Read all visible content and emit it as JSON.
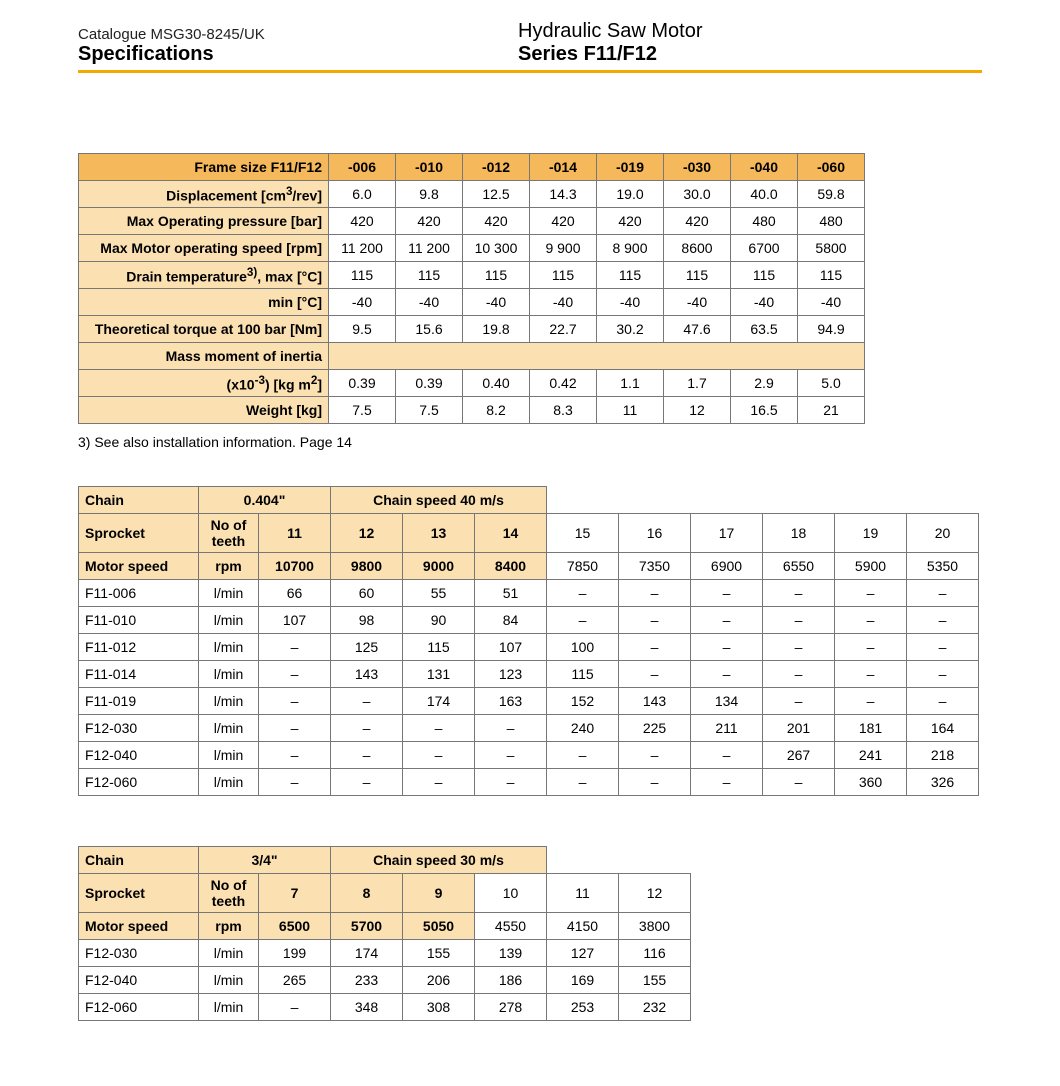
{
  "colors": {
    "accent_rule": "#f6a800",
    "header_bg": "#f5b85a",
    "header_light_bg": "#fbe0b2",
    "border": "#777777",
    "text": "#000000"
  },
  "header": {
    "catalogue": "Catalogue MSG30-8245/UK",
    "specifications": "Specifications",
    "product": "Hydraulic Saw Motor",
    "series": "Series F11/F12"
  },
  "table1": {
    "title": "Frame size F11/F12",
    "cols": [
      "-006",
      "-010",
      "-012",
      "-014",
      "-019",
      "-030",
      "-040",
      "-060"
    ],
    "rows": [
      {
        "label_html": "<b>Displacement</b> [cm<sup>3</sup>/rev]",
        "vals": [
          "6.0",
          "9.8",
          "12.5",
          "14.3",
          "19.0",
          "30.0",
          "40.0",
          "59.8"
        ]
      },
      {
        "label_html": "<b>Max Operating pressure</b> [bar]",
        "vals": [
          "420",
          "420",
          "420",
          "420",
          "420",
          "420",
          "480",
          "480"
        ]
      },
      {
        "label_html": "<b>Max Motor operating speed</b> [rpm]",
        "vals": [
          "11 200",
          "11 200",
          "10 300",
          "9 900",
          "8 900",
          "8600",
          "6700",
          "5800"
        ]
      },
      {
        "label_html": "<b>Drain temperature</b><sup>3)</sup>, <b>max</b> [°C]",
        "vals": [
          "115",
          "115",
          "115",
          "115",
          "115",
          "115",
          "115",
          "115"
        ]
      },
      {
        "label_html": "<b>min</b> [°C]",
        "vals": [
          "-40",
          "-40",
          "-40",
          "-40",
          "-40",
          "-40",
          "-40",
          "-40"
        ]
      },
      {
        "label_html": "<b>Theoretical torque at 100 bar</b> [Nm]",
        "vals": [
          "9.5",
          "15.6",
          "19.8",
          "22.7",
          "30.2",
          "47.6",
          "63.5",
          "94.9"
        ]
      },
      {
        "label_html": "<b>Mass moment of inertia</b>",
        "span": true
      },
      {
        "label_html": "(x10<sup>-3</sup>) [kg m<sup>2</sup>]",
        "vals": [
          "0.39",
          "0.39",
          "0.40",
          "0.42",
          "1.1",
          "1.7",
          "2.9",
          "5.0"
        ]
      },
      {
        "label_html": "<b>Weight</b> [kg]",
        "vals": [
          "7.5",
          "7.5",
          "8.2",
          "8.3",
          "11",
          "12",
          "16.5",
          "21"
        ]
      }
    ],
    "col_widths": {
      "label": 250,
      "data": 67
    },
    "footnote": "3) See also installation information. Page 14"
  },
  "table2": {
    "chain_label": "Chain",
    "chain_val": "0.404\"",
    "chain_speed": "Chain speed 40 m/s",
    "sprocket_label": "Sprocket",
    "noteeth": "No of teeth",
    "teeth": [
      "11",
      "12",
      "13",
      "14",
      "15",
      "16",
      "17",
      "18",
      "19",
      "20"
    ],
    "motor_speed_label": "Motor speed",
    "motor_speed_unit": "rpm",
    "motor_speed_vals": [
      "10700",
      "9800",
      "9000",
      "8400",
      "7850",
      "7350",
      "6900",
      "6550",
      "5900",
      "5350"
    ],
    "rows": [
      {
        "name": "F11-006",
        "unit": "l/min",
        "vals": [
          "66",
          "60",
          "55",
          "51",
          "–",
          "–",
          "–",
          "–",
          "–",
          "–"
        ]
      },
      {
        "name": "F11-010",
        "unit": "l/min",
        "vals": [
          "107",
          "98",
          "90",
          "84",
          "–",
          "–",
          "–",
          "–",
          "–",
          "–"
        ]
      },
      {
        "name": "F11-012",
        "unit": "l/min",
        "vals": [
          "–",
          "125",
          "115",
          "107",
          "100",
          "–",
          "–",
          "–",
          "–",
          "–"
        ]
      },
      {
        "name": "F11-014",
        "unit": "l/min",
        "vals": [
          "–",
          "143",
          "131",
          "123",
          "115",
          "–",
          "–",
          "–",
          "–",
          "–"
        ]
      },
      {
        "name": "F11-019",
        "unit": "l/min",
        "vals": [
          "–",
          "–",
          "174",
          "163",
          "152",
          "143",
          "134",
          "–",
          "–",
          "–"
        ]
      },
      {
        "name": "F12-030",
        "unit": "l/min",
        "vals": [
          "–",
          "–",
          "–",
          "–",
          "240",
          "225",
          "211",
          "201",
          "181",
          "164"
        ]
      },
      {
        "name": "F12-040",
        "unit": "l/min",
        "vals": [
          "–",
          "–",
          "–",
          "–",
          "–",
          "–",
          "–",
          "267",
          "241",
          "218"
        ]
      },
      {
        "name": "F12-060",
        "unit": "l/min",
        "vals": [
          "–",
          "–",
          "–",
          "–",
          "–",
          "–",
          "–",
          "–",
          "360",
          "326"
        ]
      }
    ],
    "col_widths": {
      "c1": 120,
      "c2": 60,
      "data": 72
    }
  },
  "table3": {
    "chain_label": "Chain",
    "chain_val": "3/4\"",
    "chain_speed": "Chain speed 30 m/s",
    "sprocket_label": "Sprocket",
    "noteeth": "No of teeth",
    "teeth": [
      "7",
      "8",
      "9",
      "10",
      "11",
      "12"
    ],
    "motor_speed_label": "Motor speed",
    "motor_speed_unit": "rpm",
    "motor_speed_vals": [
      "6500",
      "5700",
      "5050",
      "4550",
      "4150",
      "3800"
    ],
    "rows": [
      {
        "name": "F12-030",
        "unit": "l/min",
        "vals": [
          "199",
          "174",
          "155",
          "139",
          "127",
          "116"
        ]
      },
      {
        "name": "F12-040",
        "unit": "l/min",
        "vals": [
          "265",
          "233",
          "206",
          "186",
          "169",
          "155"
        ]
      },
      {
        "name": "F12-060",
        "unit": "l/min",
        "vals": [
          "–",
          "348",
          "308",
          "278",
          "253",
          "232"
        ]
      }
    ],
    "col_widths": {
      "c1": 120,
      "c2": 60,
      "data": 72
    }
  }
}
